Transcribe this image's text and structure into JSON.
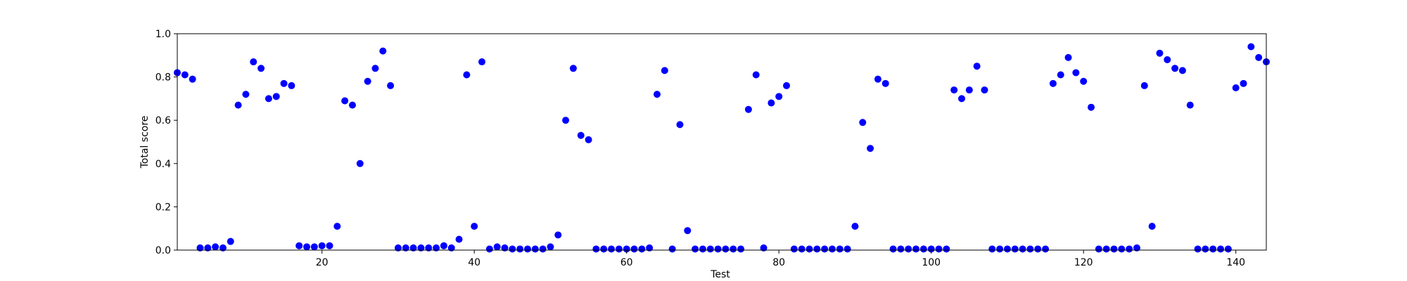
{
  "chart_data": {
    "type": "scatter",
    "xlabel": "Test",
    "ylabel": "Total score",
    "xlim": [
      1,
      144
    ],
    "ylim": [
      0.0,
      1.0
    ],
    "xticks": [
      20,
      40,
      60,
      80,
      100,
      120,
      140
    ],
    "yticks": [
      0.0,
      0.2,
      0.4,
      0.6,
      0.8,
      1.0
    ],
    "xtick_labels": [
      "20",
      "40",
      "60",
      "80",
      "100",
      "120",
      "140"
    ],
    "ytick_labels": [
      "0.0",
      "0.2",
      "0.4",
      "0.6",
      "0.8",
      "1.0"
    ],
    "grid": false,
    "marker_color": "#0000ff",
    "x": [
      1,
      2,
      3,
      4,
      5,
      6,
      7,
      8,
      9,
      10,
      11,
      12,
      13,
      14,
      15,
      16,
      17,
      18,
      19,
      20,
      21,
      22,
      23,
      24,
      25,
      26,
      27,
      28,
      29,
      30,
      31,
      32,
      33,
      34,
      35,
      36,
      37,
      38,
      39,
      40,
      41,
      42,
      43,
      44,
      45,
      46,
      47,
      48,
      49,
      50,
      51,
      52,
      53,
      54,
      55,
      56,
      57,
      58,
      59,
      60,
      61,
      62,
      63,
      64,
      65,
      66,
      67,
      68,
      69,
      70,
      71,
      72,
      73,
      74,
      75,
      76,
      77,
      78,
      79,
      80,
      81,
      82,
      83,
      84,
      85,
      86,
      87,
      88,
      89,
      90,
      91,
      92,
      93,
      94,
      95,
      96,
      97,
      98,
      99,
      100,
      101,
      102,
      103,
      104,
      105,
      106,
      107,
      108,
      109,
      110,
      111,
      112,
      113,
      114,
      115,
      116,
      117,
      118,
      119,
      120,
      121,
      122,
      123,
      124,
      125,
      126,
      127,
      128,
      129,
      130,
      131,
      132,
      133,
      134,
      135,
      136,
      137,
      138,
      139,
      140,
      141,
      142,
      143,
      144
    ],
    "y": [
      0.82,
      0.81,
      0.79,
      0.01,
      0.01,
      0.015,
      0.01,
      0.04,
      0.67,
      0.72,
      0.87,
      0.84,
      0.7,
      0.71,
      0.77,
      0.76,
      0.02,
      0.015,
      0.015,
      0.02,
      0.02,
      0.11,
      0.69,
      0.67,
      0.4,
      0.78,
      0.84,
      0.92,
      0.76,
      0.01,
      0.01,
      0.01,
      0.01,
      0.01,
      0.01,
      0.02,
      0.01,
      0.05,
      0.81,
      0.11,
      0.87,
      0.005,
      0.015,
      0.01,
      0.005,
      0.005,
      0.005,
      0.005,
      0.005,
      0.015,
      0.07,
      0.6,
      0.84,
      0.53,
      0.51,
      0.005,
      0.005,
      0.005,
      0.005,
      0.005,
      0.005,
      0.005,
      0.01,
      0.72,
      0.83,
      0.005,
      0.58,
      0.09,
      0.005,
      0.005,
      0.005,
      0.005,
      0.005,
      0.005,
      0.005,
      0.65,
      0.81,
      0.01,
      0.68,
      0.71,
      0.76,
      0.005,
      0.005,
      0.005,
      0.005,
      0.005,
      0.005,
      0.005,
      0.005,
      0.11,
      0.59,
      0.47,
      0.79,
      0.77,
      0.005,
      0.005,
      0.005,
      0.005,
      0.005,
      0.005,
      0.005,
      0.005,
      0.74,
      0.7,
      0.74,
      0.85,
      0.74,
      0.005,
      0.005,
      0.005,
      0.005,
      0.005,
      0.005,
      0.005,
      0.005,
      0.77,
      0.81,
      0.89,
      0.82,
      0.78,
      0.66,
      0.005,
      0.005,
      0.005,
      0.005,
      0.005,
      0.01,
      0.76,
      0.11,
      0.91,
      0.88,
      0.84,
      0.83,
      0.67,
      0.005,
      0.005,
      0.005,
      0.005,
      0.005,
      0.75,
      0.77,
      0.94,
      0.89,
      0.87
    ]
  }
}
